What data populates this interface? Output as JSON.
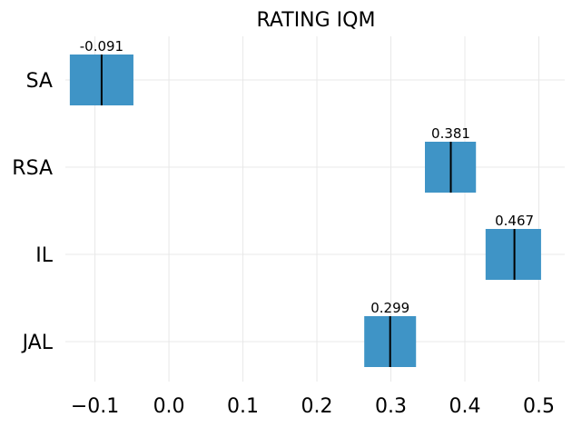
{
  "chart_data": {
    "type": "interval",
    "title": "RATING IQM",
    "xlabel": "",
    "ylabel": "",
    "xlim": [
      -0.14,
      0.535
    ],
    "xticks": [
      -0.1,
      0.0,
      0.1,
      0.2,
      0.3,
      0.4,
      0.5
    ],
    "xtick_labels": [
      "−0.1",
      "0.0",
      "0.1",
      "0.2",
      "0.3",
      "0.4",
      "0.5"
    ],
    "grid": true,
    "bar_color": "#3f94c6",
    "point_color": "#000000",
    "categories": [
      {
        "name": "SA",
        "value": -0.091,
        "label": "-0.091",
        "ci": [
          -0.134,
          -0.048
        ]
      },
      {
        "name": "RSA",
        "value": 0.381,
        "label": "0.381",
        "ci": [
          0.346,
          0.415
        ]
      },
      {
        "name": "IL",
        "value": 0.467,
        "label": "0.467",
        "ci": [
          0.428,
          0.503
        ]
      },
      {
        "name": "JAL",
        "value": 0.299,
        "label": "0.299",
        "ci": [
          0.264,
          0.334
        ]
      }
    ]
  }
}
